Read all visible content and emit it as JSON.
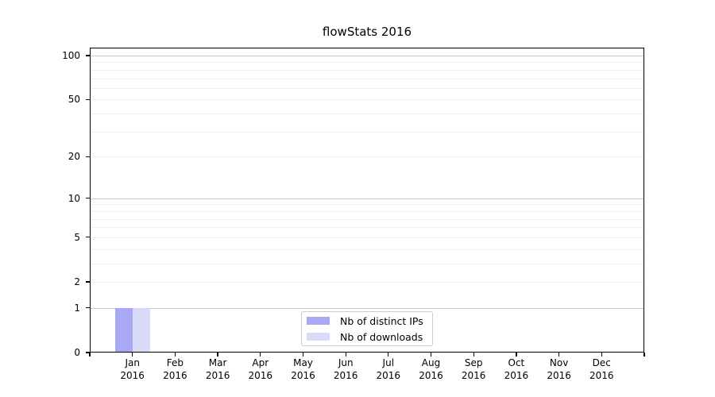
{
  "chart_data": {
    "type": "bar",
    "title": "flowStats 2016",
    "categories": [
      "Jan",
      "Feb",
      "Mar",
      "Apr",
      "May",
      "Jun",
      "Jul",
      "Aug",
      "Sep",
      "Oct",
      "Nov",
      "Dec"
    ],
    "category_year": "2016",
    "series": [
      {
        "name": "Nb of distinct IPs",
        "color": "#a8a8f4",
        "values": [
          1,
          0,
          0,
          0,
          0,
          0,
          0,
          0,
          0,
          0,
          0,
          0
        ]
      },
      {
        "name": "Nb of downloads",
        "color": "#d9d9f8",
        "values": [
          1,
          0,
          0,
          0,
          0,
          0,
          0,
          0,
          0,
          0,
          0,
          0
        ]
      }
    ],
    "y_axis": {
      "scale": "log1p",
      "tick_labels": [
        "0",
        "1",
        "2",
        "5",
        "10",
        "20",
        "50",
        "100"
      ],
      "tick_values": [
        0,
        1,
        2,
        5,
        10,
        20,
        50,
        100
      ],
      "major_gridlines": [
        1,
        10,
        100
      ],
      "minor_gridlines": [
        2,
        3,
        4,
        5,
        6,
        7,
        8,
        9,
        20,
        30,
        40,
        50,
        60,
        70,
        80,
        90
      ],
      "max_value": 113.2,
      "ylim": [
        0,
        113.2
      ]
    },
    "x_axis": {
      "num_edge_ticks": 14
    },
    "legend_position": "bottom-center",
    "grid": true
  },
  "colors": {
    "grid_major": "#c8c8c8",
    "grid_minor": "#efefef",
    "legend_border": "#cccccc",
    "axis": "#000000",
    "background": "#ffffff"
  }
}
